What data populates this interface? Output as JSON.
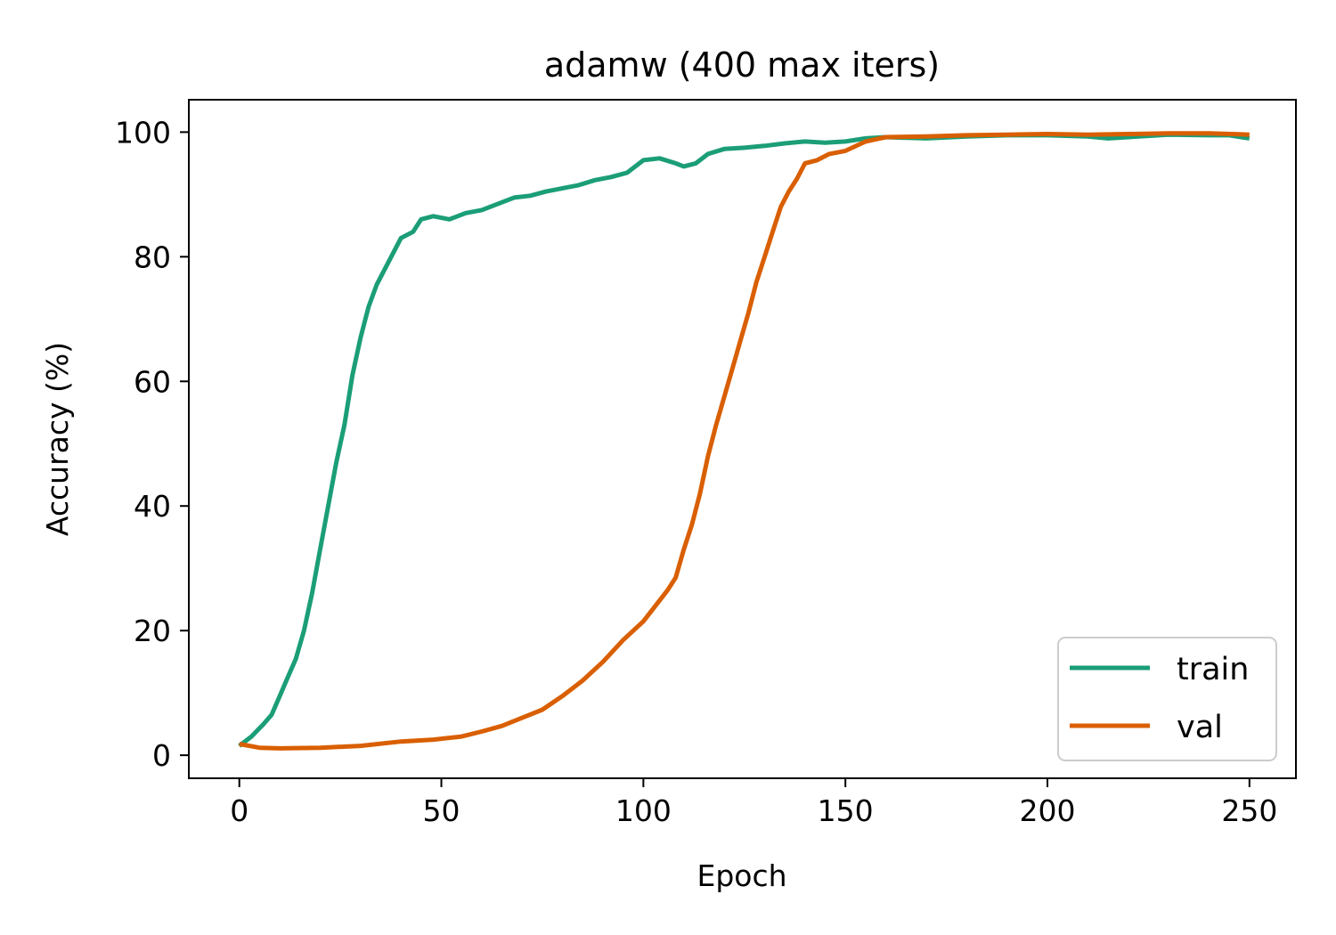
{
  "chart_data": {
    "type": "line",
    "title": "adamw (400 max iters)",
    "xlabel": "Epoch",
    "ylabel": "Accuracy (%)",
    "xlim": [
      -12.5,
      261.5
    ],
    "ylim": [
      -3.7,
      105.2
    ],
    "xticks": [
      0,
      50,
      100,
      150,
      200,
      250
    ],
    "yticks": [
      0,
      20,
      40,
      60,
      80,
      100
    ],
    "legend_position": "lower-right",
    "grid": false,
    "series": [
      {
        "name": "train",
        "color": "#1b9e77",
        "points": [
          [
            0,
            1.5
          ],
          [
            3,
            3.0
          ],
          [
            6,
            5.0
          ],
          [
            8,
            6.5
          ],
          [
            10,
            9.5
          ],
          [
            12,
            12.5
          ],
          [
            14,
            15.5
          ],
          [
            16,
            20.0
          ],
          [
            18,
            26.0
          ],
          [
            20,
            33.0
          ],
          [
            22,
            40.0
          ],
          [
            24,
            47.0
          ],
          [
            26,
            53.0
          ],
          [
            28,
            61.0
          ],
          [
            30,
            67.0
          ],
          [
            32,
            72.0
          ],
          [
            34,
            75.5
          ],
          [
            36,
            78.0
          ],
          [
            38,
            80.5
          ],
          [
            40,
            83.0
          ],
          [
            43,
            84.0
          ],
          [
            45,
            86.0
          ],
          [
            48,
            86.5
          ],
          [
            52,
            86.0
          ],
          [
            56,
            87.0
          ],
          [
            60,
            87.5
          ],
          [
            64,
            88.5
          ],
          [
            68,
            89.5
          ],
          [
            72,
            89.8
          ],
          [
            76,
            90.5
          ],
          [
            80,
            91.0
          ],
          [
            84,
            91.5
          ],
          [
            88,
            92.3
          ],
          [
            92,
            92.8
          ],
          [
            96,
            93.5
          ],
          [
            100,
            95.5
          ],
          [
            104,
            95.8
          ],
          [
            108,
            95.0
          ],
          [
            110,
            94.5
          ],
          [
            113,
            95.0
          ],
          [
            116,
            96.5
          ],
          [
            120,
            97.3
          ],
          [
            125,
            97.5
          ],
          [
            130,
            97.8
          ],
          [
            135,
            98.2
          ],
          [
            140,
            98.5
          ],
          [
            145,
            98.3
          ],
          [
            150,
            98.5
          ],
          [
            155,
            99.0
          ],
          [
            160,
            99.2
          ],
          [
            170,
            99.0
          ],
          [
            180,
            99.3
          ],
          [
            190,
            99.5
          ],
          [
            200,
            99.5
          ],
          [
            210,
            99.3
          ],
          [
            215,
            99.0
          ],
          [
            220,
            99.2
          ],
          [
            230,
            99.6
          ],
          [
            240,
            99.5
          ],
          [
            245,
            99.5
          ],
          [
            250,
            99.0
          ]
        ]
      },
      {
        "name": "val",
        "color": "#d95f02",
        "points": [
          [
            0,
            1.8
          ],
          [
            5,
            1.2
          ],
          [
            10,
            1.1
          ],
          [
            20,
            1.2
          ],
          [
            30,
            1.5
          ],
          [
            40,
            2.2
          ],
          [
            48,
            2.5
          ],
          [
            55,
            3.0
          ],
          [
            60,
            3.8
          ],
          [
            65,
            4.7
          ],
          [
            70,
            6.0
          ],
          [
            75,
            7.3
          ],
          [
            80,
            9.5
          ],
          [
            85,
            12.0
          ],
          [
            90,
            15.0
          ],
          [
            95,
            18.5
          ],
          [
            100,
            21.5
          ],
          [
            103,
            24.0
          ],
          [
            106,
            26.5
          ],
          [
            108,
            28.5
          ],
          [
            110,
            33.0
          ],
          [
            112,
            37.0
          ],
          [
            114,
            42.0
          ],
          [
            116,
            48.0
          ],
          [
            118,
            53.0
          ],
          [
            120,
            57.5
          ],
          [
            122,
            62.0
          ],
          [
            124,
            66.5
          ],
          [
            126,
            71.0
          ],
          [
            128,
            76.0
          ],
          [
            130,
            80.0
          ],
          [
            132,
            84.0
          ],
          [
            134,
            88.0
          ],
          [
            136,
            90.5
          ],
          [
            138,
            92.5
          ],
          [
            140,
            95.0
          ],
          [
            143,
            95.5
          ],
          [
            146,
            96.5
          ],
          [
            150,
            97.0
          ],
          [
            155,
            98.5
          ],
          [
            160,
            99.2
          ],
          [
            170,
            99.3
          ],
          [
            180,
            99.5
          ],
          [
            190,
            99.6
          ],
          [
            200,
            99.7
          ],
          [
            210,
            99.6
          ],
          [
            220,
            99.7
          ],
          [
            230,
            99.8
          ],
          [
            240,
            99.8
          ],
          [
            250,
            99.6
          ]
        ]
      }
    ]
  }
}
